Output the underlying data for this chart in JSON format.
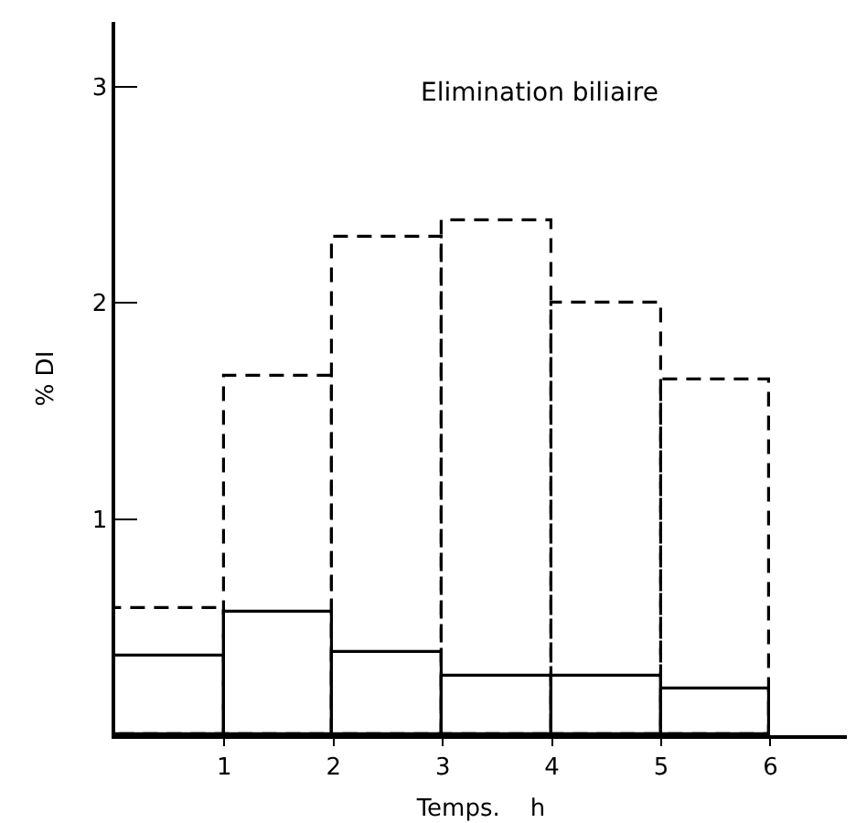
{
  "chart_data": {
    "type": "histogram",
    "title": "Elimination biliaire",
    "xlabel": "Temps.    h",
    "ylabel": "% DI",
    "bins": [
      0,
      1,
      2,
      3,
      4,
      5,
      6
    ],
    "series": [
      {
        "color": "#000000",
        "line_style": "dashed",
        "values": [
          0.58,
          1.66,
          2.3,
          2.38,
          2.0,
          1.64
        ]
      },
      {
        "color": "#000000",
        "line_style": "solid",
        "values": [
          0.36,
          0.57,
          0.38,
          0.27,
          0.27,
          0.21
        ]
      }
    ],
    "xlim": [
      0,
      6.7
    ],
    "xticks": [
      1,
      2,
      3,
      4,
      5,
      6
    ],
    "ylim": [
      0,
      3.3
    ],
    "yticks": [
      1,
      2,
      3
    ],
    "grid": false
  }
}
